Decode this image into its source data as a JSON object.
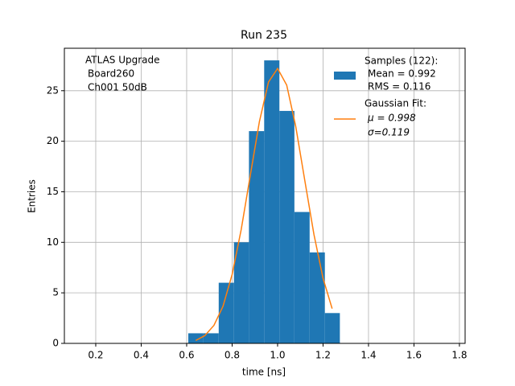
{
  "chart_data": {
    "type": "histogram",
    "title": "Run 235",
    "x_label": "time [ns]",
    "y_label": "Entries",
    "annotation": [
      "ATLAS Upgrade",
      "Board260",
      "Ch001 50dB"
    ],
    "bins": [
      0.607,
      0.674,
      0.741,
      0.808,
      0.874,
      0.941,
      1.008,
      1.074,
      1.141,
      1.208,
      1.274
    ],
    "values": [
      1,
      1,
      6,
      10,
      21,
      28,
      23,
      13,
      9,
      3
    ],
    "color": "#1f77b4",
    "name": [
      "Samples (122):",
      "Mean = 0.992",
      "RMS = 0.116"
    ],
    "fit": {
      "type": "line",
      "name": [
        "Gaussian Fit:",
        "μ = 0.998",
        "σ=0.119"
      ],
      "color": "#ff7f0e",
      "x": [
        0.64,
        0.68,
        0.72,
        0.76,
        0.8,
        0.84,
        0.88,
        0.92,
        0.96,
        1.0,
        1.04,
        1.08,
        1.12,
        1.16,
        1.2,
        1.24
      ],
      "values": [
        0.29,
        0.77,
        1.78,
        3.68,
        6.82,
        11.27,
        16.64,
        21.94,
        25.85,
        27.2,
        25.56,
        21.45,
        16.08,
        10.77,
        6.44,
        3.44
      ]
    },
    "xlim": [
      0.062,
      1.825
    ],
    "ylim": [
      0,
      29.2
    ],
    "xticks": [
      0.2,
      0.4,
      0.6,
      0.8,
      {
        "value": 1,
        "label": "1.0"
      },
      1.2,
      1.4,
      1.6,
      1.8
    ],
    "yticks": [
      0,
      5,
      10,
      15,
      20,
      25
    ],
    "grid": true,
    "legend": "upper right"
  }
}
